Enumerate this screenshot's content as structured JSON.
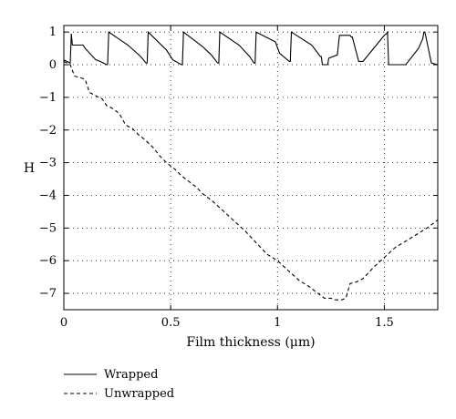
{
  "chart_data": {
    "type": "line",
    "title": "",
    "xlabel": "Film thickness (μm)",
    "ylabel": "H",
    "xlim": [
      0,
      1.75
    ],
    "ylim": [
      -7.5,
      1.2
    ],
    "xticks": [
      0,
      0.5,
      1,
      1.5
    ],
    "xtick_labels": [
      "0",
      "0.5",
      "1",
      "1.5"
    ],
    "yticks": [
      1,
      0,
      -1,
      -2,
      -3,
      -4,
      -5,
      -6,
      -7
    ],
    "ytick_labels": [
      "1",
      "0",
      "−1",
      "−2",
      "−3",
      "−4",
      "−5",
      "−6",
      "−7"
    ],
    "grid": true,
    "legend_position": "bottom-left, below plot",
    "series": [
      {
        "name": "Wrapped",
        "style": "solid",
        "color": "#000000",
        "x": [
          0,
          0.03,
          0.035,
          0.04,
          0.09,
          0.1,
          0.15,
          0.17,
          0.2,
          0.205,
          0.21,
          0.3,
          0.36,
          0.385,
          0.39,
          0.395,
          0.48,
          0.51,
          0.55,
          0.555,
          0.56,
          0.65,
          0.69,
          0.72,
          0.725,
          0.73,
          0.82,
          0.87,
          0.89,
          0.895,
          0.9,
          0.99,
          1.01,
          1.055,
          1.06,
          1.065,
          1.16,
          1.195,
          1.2,
          1.205,
          1.21,
          1.235,
          1.24,
          1.28,
          1.29,
          1.34,
          1.345,
          1.35,
          1.38,
          1.4,
          1.45,
          1.5,
          1.51,
          1.515,
          1.52,
          1.6,
          1.66,
          1.68,
          1.685,
          1.69,
          1.72,
          1.75
        ],
        "y": [
          0.15,
          0.05,
          0.95,
          0.6,
          0.6,
          0.5,
          0.15,
          0.1,
          0.0,
          0.0,
          1.0,
          0.6,
          0.25,
          0.05,
          0.05,
          1.0,
          0.45,
          0.15,
          0.0,
          0.0,
          1.0,
          0.55,
          0.3,
          0.05,
          0.05,
          1.0,
          0.6,
          0.25,
          0.05,
          0.05,
          1.0,
          0.7,
          0.35,
          0.1,
          0.1,
          1.0,
          0.6,
          0.3,
          0.25,
          0.25,
          0.0,
          0.0,
          0.2,
          0.3,
          0.9,
          0.9,
          0.85,
          0.85,
          0.1,
          0.1,
          0.5,
          0.9,
          0.95,
          1.0,
          0.0,
          0.0,
          0.5,
          0.8,
          1.0,
          1.0,
          0.05,
          0.0
        ]
      },
      {
        "name": "Unwrapped",
        "style": "dashed",
        "color": "#000000",
        "x": [
          0,
          0.03,
          0.05,
          0.08,
          0.1,
          0.12,
          0.15,
          0.18,
          0.2,
          0.23,
          0.26,
          0.29,
          0.32,
          0.35,
          0.38,
          0.42,
          0.45,
          0.48,
          0.52,
          0.55,
          0.58,
          0.62,
          0.65,
          0.7,
          0.75,
          0.8,
          0.85,
          0.9,
          0.95,
          1.0,
          1.05,
          1.1,
          1.15,
          1.2,
          1.22,
          1.25,
          1.27,
          1.28,
          1.3,
          1.32,
          1.34,
          1.37,
          1.4,
          1.45,
          1.5,
          1.55,
          1.6,
          1.65,
          1.7,
          1.75
        ],
        "y": [
          0.1,
          0.0,
          -0.35,
          -0.4,
          -0.45,
          -0.85,
          -0.95,
          -1.05,
          -1.25,
          -1.35,
          -1.5,
          -1.85,
          -1.95,
          -2.15,
          -2.3,
          -2.55,
          -2.8,
          -3.0,
          -3.2,
          -3.4,
          -3.55,
          -3.75,
          -3.95,
          -4.2,
          -4.5,
          -4.8,
          -5.1,
          -5.45,
          -5.8,
          -6.0,
          -6.3,
          -6.6,
          -6.8,
          -7.05,
          -7.15,
          -7.15,
          -7.2,
          -7.2,
          -7.2,
          -7.15,
          -6.7,
          -6.65,
          -6.55,
          -6.2,
          -5.9,
          -5.6,
          -5.4,
          -5.2,
          -5.0,
          -4.75
        ]
      }
    ]
  }
}
